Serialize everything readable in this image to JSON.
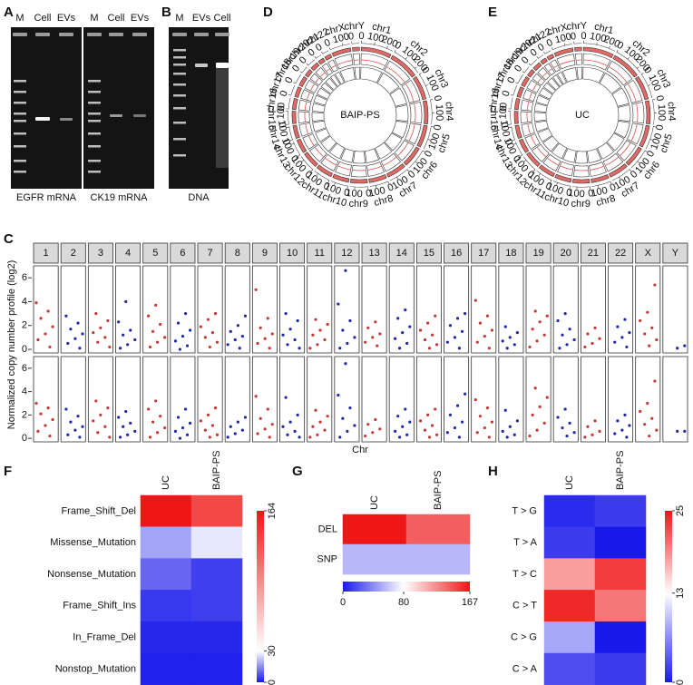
{
  "panel_labels": [
    "A",
    "B",
    "C",
    "D",
    "E",
    "F",
    "G",
    "H"
  ],
  "gels": [
    {
      "lanes": [
        "M",
        "Cell",
        "EVs"
      ],
      "caption": "EGFR mRNA"
    },
    {
      "lanes": [
        "M",
        "Cell",
        "EVs"
      ],
      "caption": "CK19 mRNA"
    },
    {
      "lanes": [
        "M",
        "EVs",
        "Cell"
      ],
      "caption": "DNA"
    }
  ],
  "circos": {
    "chromosomes": [
      "chr1",
      "chr2",
      "chr3",
      "chr4",
      "chr5",
      "chr6",
      "chr7",
      "chr8",
      "chr9",
      "chr10",
      "chr11",
      "chr12",
      "chr13",
      "chr14",
      "chr15",
      "chr16",
      "chr17",
      "chr18",
      "chr19",
      "chr20",
      "chr21",
      "chr22",
      "chrX",
      "chrY"
    ],
    "lengths": [
      249,
      242,
      198,
      190,
      181,
      171,
      159,
      145,
      138,
      134,
      135,
      133,
      114,
      107,
      102,
      90,
      83,
      80,
      59,
      64,
      47,
      51,
      156,
      57
    ],
    "ticks": [
      0,
      100,
      200
    ],
    "plots": [
      {
        "center_label": "BAIP-PS"
      },
      {
        "center_label": "UC"
      }
    ]
  },
  "chart_data": [
    {
      "type": "facet-scatter",
      "ylabel": "Normalized copy number profile (log2)",
      "xlabel": "Chr",
      "facets": [
        "1",
        "2",
        "3",
        "4",
        "5",
        "6",
        "7",
        "8",
        "9",
        "10",
        "11",
        "12",
        "13",
        "14",
        "15",
        "16",
        "17",
        "18",
        "19",
        "20",
        "21",
        "22",
        "X",
        "Y"
      ],
      "colors": [
        "#c43a36",
        "#1f2aa6"
      ],
      "ylim": [
        -0.3,
        7
      ],
      "yticks": [
        0,
        2,
        4,
        6
      ],
      "rows": [
        {
          "values": [
            [
              3.9,
              3.2,
              2.6,
              1.9,
              1.3,
              0.8,
              0.2
            ],
            [
              2.8,
              2.2,
              1.7,
              1.3,
              0.9,
              0.5,
              0.1
            ],
            [
              3.0,
              2.4,
              1.8,
              1.4,
              1.0,
              0.6,
              0.2
            ],
            [
              4.0,
              2.3,
              1.6,
              1.2,
              0.8,
              0.4,
              0.1
            ],
            [
              3.7,
              2.8,
              2.1,
              1.5,
              1.0,
              0.6,
              0.2
            ],
            [
              3.0,
              2.2,
              1.6,
              1.1,
              0.7,
              0.3,
              0.0
            ],
            [
              3.0,
              2.5,
              1.9,
              1.4,
              1.0,
              0.6,
              0.2
            ],
            [
              2.8,
              2.0,
              1.5,
              1.1,
              0.8,
              0.4,
              0.1
            ],
            [
              5.0,
              2.6,
              1.8,
              1.3,
              0.9,
              0.5,
              0.1
            ],
            [
              3.0,
              2.4,
              1.7,
              1.2,
              0.8,
              0.4,
              0.1
            ],
            [
              2.5,
              2.1,
              1.6,
              1.2,
              0.8,
              0.4,
              0.1
            ],
            [
              6.6,
              3.8,
              2.4,
              1.6,
              1.0,
              0.5,
              0.1
            ],
            [
              2.3,
              1.8,
              1.3,
              1.0,
              0.6,
              0.3
            ],
            [
              3.3,
              2.6,
              1.9,
              1.4,
              0.9,
              0.5,
              0.1
            ],
            [
              2.8,
              2.2,
              1.6,
              1.2,
              0.8,
              0.4,
              0.1
            ],
            [
              3.0,
              2.6,
              2.0,
              1.5,
              1.0,
              0.6,
              0.1
            ],
            [
              4.1,
              2.8,
              2.2,
              1.6,
              1.1,
              0.6,
              0.1
            ],
            [
              1.9,
              1.4,
              1.0,
              0.7,
              0.4,
              0.1
            ],
            [
              3.2,
              2.8,
              2.3,
              1.7,
              1.2,
              0.7,
              0.2
            ],
            [
              3.0,
              2.4,
              1.7,
              1.2,
              0.8,
              0.4,
              0.1
            ],
            [
              1.8,
              1.3,
              0.9,
              0.5,
              0.2
            ],
            [
              2.5,
              1.9,
              1.4,
              1.0,
              0.6,
              0.2
            ],
            [
              5.4,
              3.1,
              2.4,
              1.8,
              1.3,
              0.8,
              0.3
            ],
            [
              0.3,
              0.1
            ]
          ]
        },
        {
          "values": [
            [
              3.0,
              2.6,
              2.1,
              1.6,
              1.1,
              0.6,
              0.2
            ],
            [
              2.5,
              1.9,
              1.4,
              1.0,
              0.7,
              0.3,
              0.1
            ],
            [
              3.2,
              2.6,
              2.0,
              1.5,
              1.0,
              0.5,
              0.1
            ],
            [
              2.3,
              1.8,
              1.3,
              1.0,
              0.6,
              0.3,
              0.1
            ],
            [
              3.2,
              2.5,
              1.9,
              1.4,
              0.9,
              0.5,
              0.1
            ],
            [
              2.5,
              1.8,
              1.3,
              0.9,
              0.6,
              0.3,
              0.0
            ],
            [
              2.6,
              2.0,
              1.5,
              1.1,
              0.7,
              0.3,
              0.1
            ],
            [
              1.8,
              1.4,
              1.0,
              0.7,
              0.4,
              0.1
            ],
            [
              3.6,
              2.5,
              1.7,
              1.2,
              0.8,
              0.4,
              0.1
            ],
            [
              3.5,
              2.0,
              1.4,
              1.0,
              0.6,
              0.3,
              0.1
            ],
            [
              2.4,
              1.9,
              1.4,
              1.0,
              0.7,
              0.3,
              0.1
            ],
            [
              6.4,
              3.7,
              2.6,
              1.7,
              1.1,
              0.6,
              0.1
            ],
            [
              1.6,
              1.2,
              0.8,
              0.5,
              0.2
            ],
            [
              2.5,
              1.9,
              1.4,
              1.0,
              0.6,
              0.3,
              0.1
            ],
            [
              2.5,
              2.0,
              1.5,
              1.1,
              0.7,
              0.3,
              0.1
            ],
            [
              3.8,
              2.8,
              2.0,
              1.4,
              0.9,
              0.5,
              0.1
            ],
            [
              3.3,
              2.6,
              1.9,
              1.4,
              0.9,
              0.5,
              0.1
            ],
            [
              2.4,
              1.5,
              1.0,
              0.6,
              0.3,
              0.1
            ],
            [
              4.3,
              3.5,
              2.7,
              2.0,
              1.3,
              0.7,
              0.2
            ],
            [
              2.5,
              1.8,
              1.3,
              0.9,
              0.5,
              0.2
            ],
            [
              1.5,
              1.0,
              0.6,
              0.3,
              0.1
            ],
            [
              2.0,
              1.5,
              1.1,
              0.7,
              0.4,
              0.1
            ],
            [
              4.9,
              3.0,
              2.3,
              1.7,
              1.2,
              0.7,
              0.2
            ],
            [
              0.6,
              0.6
            ]
          ]
        }
      ]
    },
    {
      "type": "heatmap",
      "rows": [
        "Frame_Shift_Del",
        "Missense_Mutation",
        "Nonsense_Mutation",
        "Frame_Shift_Ins",
        "In_Frame_Del",
        "Nonstop_Mutation"
      ],
      "columns": [
        "UC",
        "BAIP-PS"
      ],
      "values": [
        [
          164,
          135
        ],
        [
          18,
          27
        ],
        [
          10,
          5
        ],
        [
          4,
          5
        ],
        [
          2,
          2
        ],
        [
          1,
          1
        ]
      ],
      "zlim": [
        0,
        164
      ],
      "zmid": 30,
      "zticks": [
        0,
        30,
        164
      ],
      "colorbar": "right"
    },
    {
      "type": "heatmap",
      "rows": [
        "DEL",
        "SNP"
      ],
      "columns": [
        "UC",
        "BAIP-PS"
      ],
      "values": [
        [
          167,
          140
        ],
        [
          55,
          55
        ]
      ],
      "zlim": [
        0,
        167
      ],
      "zmid": 80,
      "zticks": [
        0,
        80,
        167
      ],
      "colorbar": "bottom"
    },
    {
      "type": "heatmap",
      "rows": [
        "T > G",
        "T > A",
        "T > C",
        "C > T",
        "C > G",
        "C > A"
      ],
      "columns": [
        "UC",
        "BAIP-PS"
      ],
      "values": [
        [
          1,
          2
        ],
        [
          2,
          0
        ],
        [
          18,
          23
        ],
        [
          24,
          20
        ],
        [
          8,
          0
        ],
        [
          3,
          2
        ]
      ],
      "zlim": [
        0,
        25
      ],
      "zmid": 13,
      "zticks": [
        0,
        13,
        25
      ],
      "colorbar": "right"
    }
  ]
}
